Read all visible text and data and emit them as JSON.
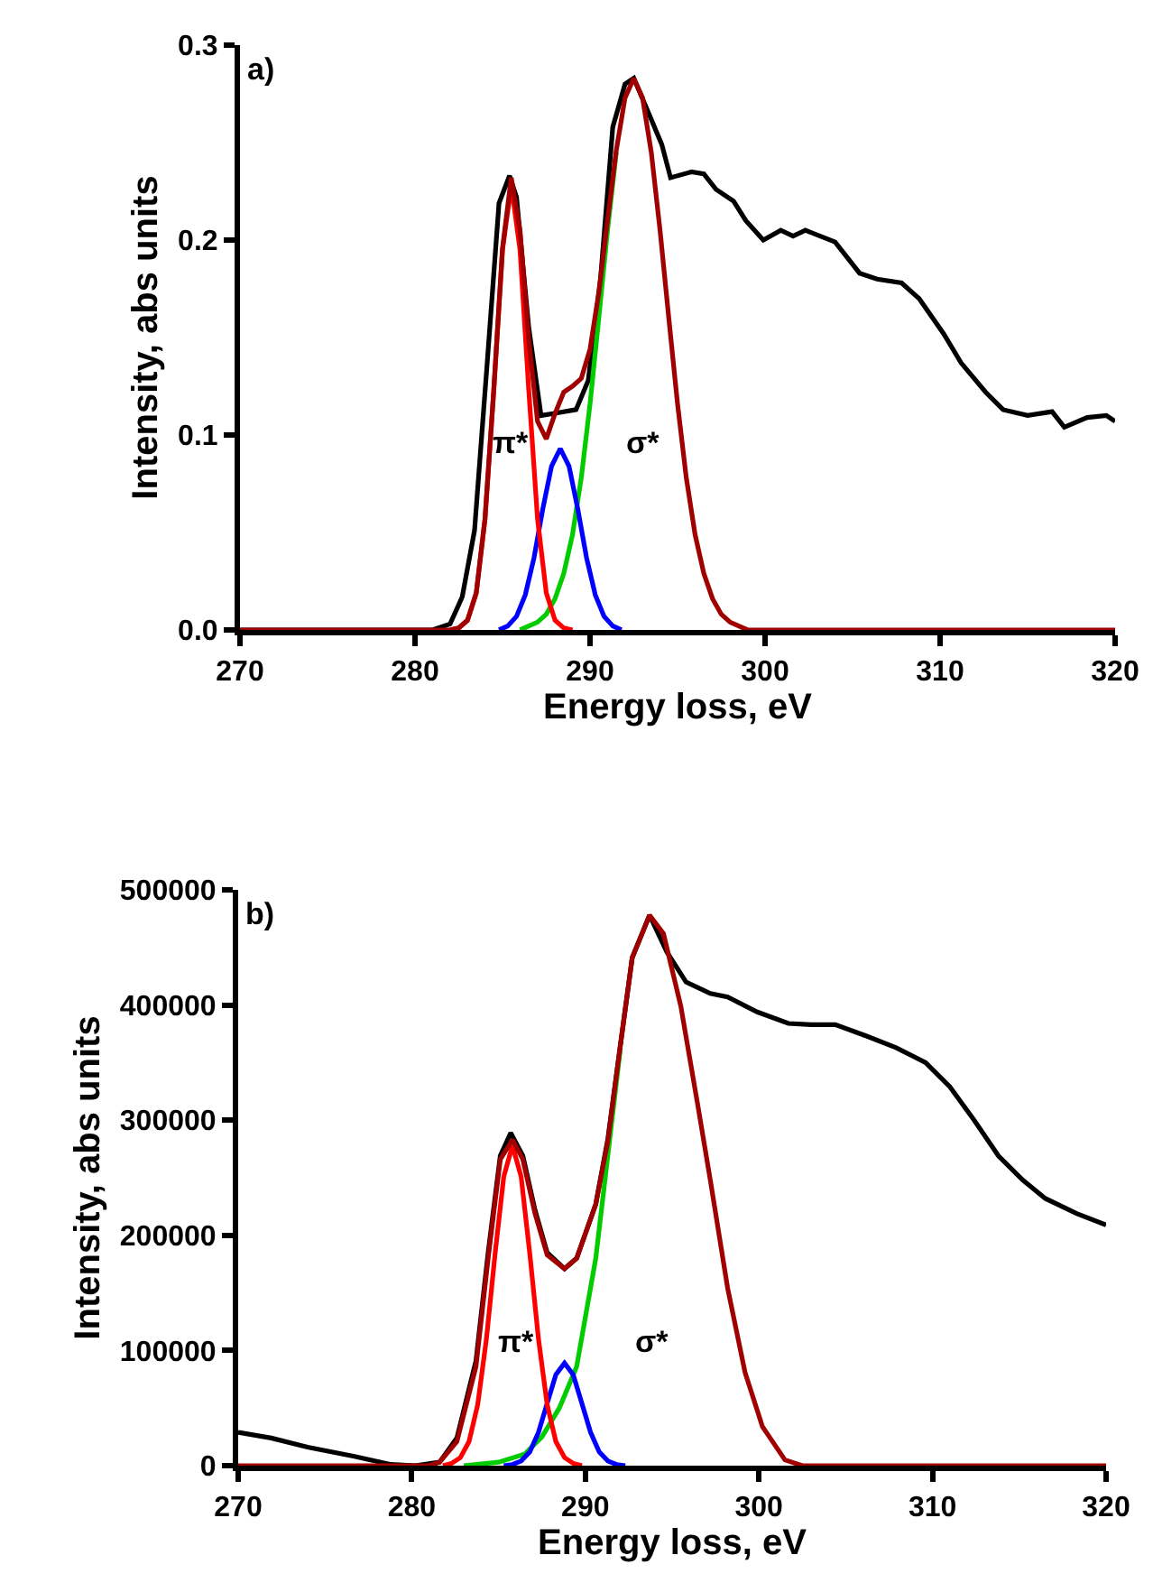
{
  "chart_data": [
    {
      "type": "line",
      "xlabel": "Energy loss, eV",
      "ylabel": "Intensity, abs units",
      "xlim": [
        270,
        320
      ],
      "xticks": [
        270,
        280,
        290,
        300,
        310,
        320
      ],
      "ylim": [
        0,
        0.3
      ],
      "yticks": [
        {
          "value": 0,
          "label": "0.0"
        },
        0.1,
        0.2,
        0.3
      ],
      "annotations": [
        "a)",
        "π*",
        "σ*"
      ],
      "series": [
        {
          "color": "#000000",
          "x": [
            270,
            281,
            282,
            282.7,
            283.4,
            284.1,
            284.8,
            285.4,
            285.8,
            286.5,
            287.2,
            287.9,
            289.2,
            289.9,
            290.6,
            291.3,
            292.0,
            292.5,
            293.4,
            294.1,
            294.6,
            295.8,
            296.5,
            297.2,
            298.2,
            298.9,
            299.9,
            300.9,
            301.6,
            302.3,
            304.0,
            305.4,
            306.4,
            307.8,
            308.8,
            310.2,
            311.2,
            312.6,
            313.6,
            315.0,
            316.4,
            317.1,
            318.4,
            319.5,
            320
          ],
          "values": [
            0,
            0,
            0.003,
            0.017,
            0.051,
            0.134,
            0.219,
            0.233,
            0.222,
            0.155,
            0.11,
            0.111,
            0.113,
            0.128,
            0.18,
            0.258,
            0.28,
            0.283,
            0.264,
            0.249,
            0.232,
            0.235,
            0.234,
            0.226,
            0.22,
            0.21,
            0.2,
            0.205,
            0.202,
            0.205,
            0.199,
            0.183,
            0.18,
            0.178,
            0.17,
            0.152,
            0.137,
            0.122,
            0.113,
            0.11,
            0.112,
            0.104,
            0.109,
            0.11,
            0.107
          ]
        },
        {
          "color": "#00cc00",
          "x": [
            286,
            286.5,
            287,
            287.5,
            288,
            288.5,
            289,
            289.5,
            290,
            290.5,
            291,
            291.5
          ],
          "values": [
            0,
            0.002,
            0.004,
            0.008,
            0.016,
            0.029,
            0.049,
            0.078,
            0.116,
            0.16,
            0.205,
            0.245
          ]
        },
        {
          "color": "#0000ff",
          "x": [
            284.8,
            285.3,
            285.8,
            286.3,
            286.8,
            287.3,
            287.8,
            288.3,
            288.8,
            289.3,
            289.8,
            290.3,
            290.8,
            291.3,
            291.8
          ],
          "values": [
            0,
            0.002,
            0.007,
            0.018,
            0.037,
            0.062,
            0.084,
            0.093,
            0.084,
            0.062,
            0.037,
            0.018,
            0.007,
            0.002,
            0
          ]
        },
        {
          "color": "#ff0000",
          "x": [
            282,
            282.5,
            283,
            283.5,
            284,
            284.5,
            285,
            285.5,
            286,
            286.5,
            287,
            287.5,
            288,
            288.5,
            289
          ],
          "values": [
            0,
            0.001,
            0.005,
            0.019,
            0.057,
            0.123,
            0.195,
            0.228,
            0.195,
            0.123,
            0.057,
            0.019,
            0.005,
            0.001,
            0
          ]
        },
        {
          "color": "#a00000",
          "x": [
            270,
            282,
            282.5,
            283,
            283.5,
            284,
            284.5,
            285,
            285.5,
            286,
            286.5,
            287,
            287.5,
            288,
            288.5,
            289,
            289.5,
            290,
            290.5,
            291,
            291.5,
            292,
            292.5,
            293,
            293.5,
            294,
            294.5,
            295,
            295.5,
            296,
            296.5,
            297,
            297.5,
            298,
            298.5,
            299,
            320
          ],
          "values": [
            0,
            0,
            0.001,
            0.005,
            0.019,
            0.057,
            0.123,
            0.196,
            0.232,
            0.205,
            0.149,
            0.107,
            0.098,
            0.111,
            0.122,
            0.125,
            0.129,
            0.144,
            0.173,
            0.21,
            0.246,
            0.273,
            0.283,
            0.273,
            0.245,
            0.205,
            0.16,
            0.116,
            0.078,
            0.049,
            0.029,
            0.016,
            0.008,
            0.004,
            0.002,
            0,
            0
          ]
        }
      ]
    },
    {
      "type": "line",
      "xlabel": "Energy loss, eV",
      "ylabel": "Intensity, abs units",
      "xlim": [
        270,
        320
      ],
      "xticks": [
        270,
        280,
        290,
        300,
        310,
        320
      ],
      "ylim": [
        0,
        500000
      ],
      "yticks": [
        0,
        100000,
        200000,
        300000,
        400000,
        500000
      ],
      "annotations": [
        "b)",
        "π*",
        "σ*"
      ],
      "series": [
        {
          "color": "#000000",
          "x": [
            270,
            271.9,
            274,
            276.7,
            278.8,
            280.2,
            281.6,
            282.6,
            283.7,
            284.4,
            285.1,
            285.7,
            286.4,
            287.1,
            287.8,
            288.8,
            289.5,
            290.6,
            291.3,
            292.0,
            292.7,
            293.7,
            294.7,
            295.8,
            297.2,
            298.2,
            299.9,
            301.7,
            303.0,
            304.4,
            306.2,
            307.9,
            309.6,
            311.0,
            312.4,
            313.8,
            315.2,
            316.5,
            318.3,
            320
          ],
          "values": [
            29000,
            24000,
            16000,
            8000,
            1000,
            0,
            3000,
            24000,
            91000,
            185000,
            269000,
            289000,
            269000,
            222000,
            185000,
            171000,
            180000,
            227000,
            284000,
            363000,
            441000,
            478000,
            446000,
            420000,
            410000,
            407000,
            394000,
            384000,
            383000,
            383000,
            373000,
            363000,
            350000,
            329000,
            300000,
            269000,
            248000,
            232000,
            219000,
            209000
          ]
        },
        {
          "color": "#00cc00",
          "x": [
            283,
            285,
            286.5,
            287.5,
            288.5,
            289.5,
            290.6,
            291.3,
            292.0
          ],
          "values": [
            0,
            3000,
            10000,
            25000,
            50000,
            86000,
            180000,
            270000,
            360000
          ]
        },
        {
          "color": "#0000ff",
          "x": [
            285.3,
            285.8,
            286.3,
            286.8,
            287.3,
            287.8,
            288.3,
            288.8,
            289.3,
            289.8,
            290.3,
            290.8,
            291.3,
            291.8,
            292.3
          ],
          "values": [
            0,
            1000,
            4000,
            12000,
            29000,
            54000,
            79000,
            89000,
            79000,
            54000,
            29000,
            12000,
            4000,
            1000,
            0
          ]
        },
        {
          "color": "#ff0000",
          "x": [
            281.8,
            282.3,
            282.8,
            283.3,
            283.8,
            284.3,
            284.8,
            285.3,
            285.8,
            286.3,
            286.8,
            287.3,
            287.8,
            288.3,
            288.8,
            289.3,
            289.8
          ],
          "values": [
            0,
            2000,
            7000,
            21000,
            53000,
            110000,
            184000,
            251000,
            278000,
            251000,
            184000,
            110000,
            53000,
            21000,
            7000,
            2000,
            0
          ]
        },
        {
          "color": "#a00000",
          "x": [
            270,
            281,
            281.6,
            282.6,
            283.7,
            284.4,
            285.1,
            285.8,
            286.4,
            287.1,
            287.8,
            288.8,
            289.5,
            290.6,
            291.3,
            292.0,
            292.7,
            293.7,
            294.5,
            295.5,
            296.5,
            297.2,
            298.2,
            299.2,
            300.2,
            301.5,
            302.5,
            320
          ],
          "values": [
            0,
            0,
            3000,
            21000,
            86000,
            180000,
            266000,
            283000,
            266000,
            219000,
            183000,
            171000,
            180000,
            227000,
            282000,
            363000,
            441000,
            478000,
            462000,
            399000,
            311000,
            248000,
            154000,
            81000,
            34000,
            5000,
            0,
            0
          ]
        }
      ]
    }
  ]
}
